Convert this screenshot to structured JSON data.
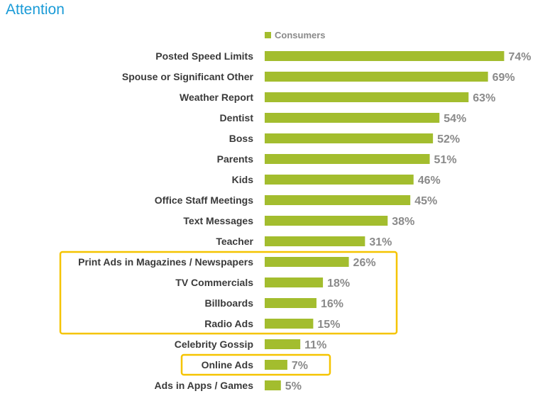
{
  "title": "Attention",
  "chart_data": {
    "type": "bar",
    "orientation": "horizontal",
    "legend": "top",
    "series": [
      {
        "name": "Consumers",
        "color": "#a3bd2e"
      }
    ],
    "categories": [
      "Posted Speed Limits",
      "Spouse or Significant Other",
      "Weather Report",
      "Dentist",
      "Boss",
      "Parents",
      "Kids",
      "Office Staff Meetings",
      "Text Messages",
      "Teacher",
      "Print Ads in Magazines / Newspapers",
      "TV Commercials",
      "Billboards",
      "Radio Ads",
      "Celebrity Gossip",
      "Online Ads",
      "Ads in Apps / Games"
    ],
    "values": [
      74,
      69,
      63,
      54,
      52,
      51,
      46,
      45,
      38,
      31,
      26,
      18,
      16,
      15,
      11,
      7,
      5
    ],
    "value_labels": [
      "74%",
      "69%",
      "63%",
      "54%",
      "52%",
      "51%",
      "46%",
      "45%",
      "38%",
      "31%",
      "26%",
      "18%",
      "16%",
      "15%",
      "11%",
      "7%",
      "5%"
    ],
    "highlight_groups": [
      {
        "categories": [
          "Print Ads in Magazines / Newspapers",
          "TV Commercials",
          "Billboards",
          "Radio Ads"
        ],
        "color": "#f5c400"
      },
      {
        "categories": [
          "Online Ads"
        ],
        "color": "#f5c400"
      }
    ]
  }
}
